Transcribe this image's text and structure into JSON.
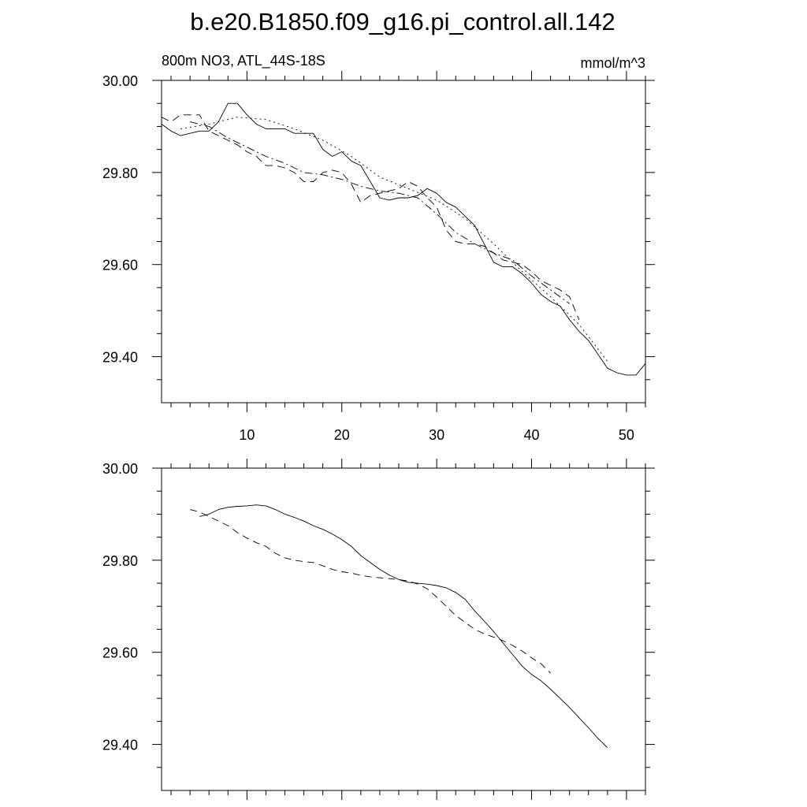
{
  "figure": {
    "title": "b.e20.B1850.f09_g16.pi_control.all.142"
  },
  "chart_data": [
    {
      "type": "line",
      "subtitle_left": "800m NO3, ATL_44S-18S",
      "subtitle_right": "mmol/m^3",
      "xlim": [
        1,
        52
      ],
      "ylim": [
        29.3,
        30.0
      ],
      "x_ticks": [
        10,
        20,
        30,
        40,
        50
      ],
      "x_tick_labels": [
        "10",
        "20",
        "30",
        "40",
        "50"
      ],
      "y_ticks": [
        29.4,
        29.6,
        29.8,
        30.0
      ],
      "y_tick_labels": [
        "29.40",
        "29.60",
        "29.80",
        "30.00"
      ],
      "grid": false,
      "series": [
        {
          "dash": "",
          "x": [
            1,
            2,
            3,
            4,
            5,
            6,
            7,
            8,
            9,
            10,
            11,
            12,
            13,
            14,
            15,
            16,
            17,
            18,
            19,
            20,
            21,
            22,
            23,
            24,
            25,
            26,
            27,
            28,
            29,
            30,
            31,
            32,
            33,
            34,
            35,
            36,
            37,
            38,
            39,
            40,
            41,
            42,
            43,
            44,
            45,
            46,
            47,
            48,
            49,
            50,
            51,
            52
          ],
          "y": [
            29.905,
            29.89,
            29.88,
            29.885,
            29.89,
            29.89,
            29.91,
            29.95,
            29.95,
            29.925,
            29.905,
            29.895,
            29.895,
            29.895,
            29.885,
            29.885,
            29.885,
            29.85,
            29.835,
            29.845,
            29.825,
            29.815,
            29.78,
            29.745,
            29.74,
            29.745,
            29.745,
            29.75,
            29.765,
            29.755,
            29.735,
            29.725,
            29.705,
            29.685,
            29.645,
            29.605,
            29.595,
            29.595,
            29.58,
            29.56,
            29.535,
            29.52,
            29.51,
            29.48,
            29.455,
            29.435,
            29.405,
            29.375,
            29.365,
            29.36,
            29.36,
            29.385
          ]
        },
        {
          "dash": "10 6",
          "x": [
            1,
            2,
            3,
            4,
            5,
            6,
            7,
            8,
            9,
            10,
            11,
            12,
            13,
            14,
            15,
            16,
            17,
            18,
            19,
            20,
            21,
            22,
            23,
            24,
            25,
            26,
            27,
            28,
            29,
            30,
            31,
            32,
            33,
            34,
            35,
            36,
            37,
            38,
            39,
            40,
            41,
            42,
            43,
            44,
            45
          ],
          "y": [
            29.92,
            29.91,
            29.925,
            29.925,
            29.925,
            29.89,
            29.88,
            29.87,
            29.86,
            29.845,
            29.835,
            29.815,
            29.815,
            29.81,
            29.8,
            29.78,
            29.78,
            29.8,
            29.805,
            29.8,
            29.775,
            29.735,
            29.75,
            29.755,
            29.76,
            29.765,
            29.78,
            29.77,
            29.745,
            29.725,
            29.675,
            29.65,
            29.645,
            29.645,
            29.64,
            29.625,
            29.61,
            29.605,
            29.6,
            29.585,
            29.565,
            29.555,
            29.545,
            29.53,
            29.48
          ]
        },
        {
          "dash": "10 4 2 4",
          "x": [
            4,
            6,
            8,
            10,
            12,
            14,
            16,
            18,
            20,
            22,
            24,
            26,
            28,
            30,
            32,
            34,
            36,
            38,
            40,
            42,
            44
          ],
          "y": [
            29.91,
            29.9,
            29.875,
            29.855,
            29.835,
            29.82,
            29.8,
            29.795,
            29.785,
            29.77,
            29.76,
            29.755,
            29.745,
            29.71,
            29.67,
            29.645,
            29.625,
            29.61,
            29.575,
            29.545,
            29.515
          ]
        },
        {
          "dash": "2 4",
          "x": [
            3,
            6,
            9,
            12,
            15,
            18,
            21,
            24,
            27,
            30,
            33,
            36,
            39,
            42,
            45,
            48
          ],
          "y": [
            29.895,
            29.905,
            29.92,
            29.915,
            29.895,
            29.87,
            29.835,
            29.79,
            29.765,
            29.74,
            29.7,
            29.645,
            29.585,
            29.53,
            29.47,
            29.39
          ]
        }
      ]
    },
    {
      "type": "line",
      "xlim": [
        1,
        52
      ],
      "ylim": [
        29.3,
        30.0
      ],
      "x_ticks": [
        10,
        20,
        30,
        40,
        50
      ],
      "y_ticks": [
        29.4,
        29.6,
        29.8,
        30.0
      ],
      "y_tick_labels": [
        "29.40",
        "29.60",
        "29.80",
        "30.00"
      ],
      "grid": false,
      "series": [
        {
          "dash": "",
          "x": [
            5,
            6,
            7,
            8,
            9,
            10,
            11,
            12,
            13,
            14,
            15,
            16,
            17,
            18,
            19,
            20,
            21,
            22,
            23,
            24,
            25,
            26,
            27,
            28,
            29,
            30,
            31,
            32,
            33,
            34,
            35,
            36,
            37,
            38,
            39,
            40,
            41,
            42,
            43,
            44,
            45,
            46,
            47,
            48
          ],
          "y": [
            29.895,
            29.9,
            29.91,
            29.915,
            29.917,
            29.918,
            29.92,
            29.918,
            29.91,
            29.9,
            29.893,
            29.885,
            29.875,
            29.867,
            29.857,
            29.845,
            29.83,
            29.81,
            29.795,
            29.78,
            29.768,
            29.758,
            29.752,
            29.75,
            29.748,
            29.745,
            29.74,
            29.73,
            29.715,
            29.69,
            29.668,
            29.645,
            29.62,
            29.595,
            29.57,
            29.552,
            29.538,
            29.52,
            29.5,
            29.48,
            29.458,
            29.436,
            29.413,
            29.393
          ]
        },
        {
          "dash": "9 6",
          "x": [
            4,
            5,
            6,
            7,
            8,
            9,
            10,
            11,
            12,
            13,
            14,
            15,
            16,
            17,
            18,
            19,
            20,
            21,
            22,
            23,
            24,
            25,
            26,
            27,
            28,
            29,
            30,
            31,
            32,
            33,
            34,
            35,
            36,
            37,
            38,
            39,
            40,
            41,
            42
          ],
          "y": [
            29.91,
            29.905,
            29.895,
            29.885,
            29.875,
            29.86,
            29.848,
            29.838,
            29.83,
            29.815,
            29.805,
            29.8,
            29.797,
            29.795,
            29.788,
            29.78,
            29.775,
            29.772,
            29.767,
            29.764,
            29.762,
            29.76,
            29.758,
            29.755,
            29.748,
            29.738,
            29.72,
            29.7,
            29.68,
            29.665,
            29.65,
            29.64,
            29.633,
            29.625,
            29.615,
            29.603,
            29.588,
            29.575,
            29.555
          ]
        }
      ]
    }
  ]
}
